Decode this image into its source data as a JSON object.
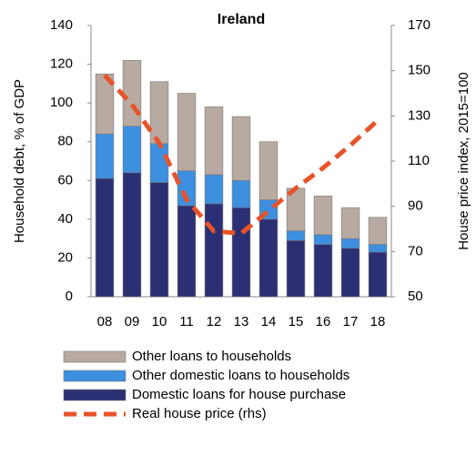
{
  "chart_data": {
    "type": "bar_line",
    "title": "Ireland",
    "y_label": "Household debt, % of GDP",
    "y2_label": "House price index, 2015=100",
    "categories": [
      "08",
      "09",
      "10",
      "11",
      "12",
      "13",
      "14",
      "15",
      "16",
      "17",
      "18"
    ],
    "ylim": [
      0,
      140
    ],
    "yticks": [
      0,
      20,
      40,
      60,
      80,
      100,
      120,
      140
    ],
    "y2lim": [
      50,
      170
    ],
    "y2ticks": [
      50,
      70,
      90,
      110,
      130,
      150,
      170
    ],
    "stacked": true,
    "series": [
      {
        "name": "Domestic loans for house purchase",
        "color": "#2b2f73",
        "values": [
          61,
          64,
          59,
          47,
          48,
          46,
          40,
          29,
          27,
          25,
          23
        ]
      },
      {
        "name": "Other domestic loans to households",
        "color": "#3d8fdf",
        "values": [
          23,
          24,
          20,
          18,
          15,
          14,
          10,
          5,
          5,
          5,
          4
        ]
      },
      {
        "name": "Other loans to households",
        "color": "#b8aaa0",
        "values": [
          31,
          34,
          32,
          40,
          35,
          33,
          30,
          22,
          20,
          16,
          14
        ]
      },
      {
        "name": "Real house price (rhs)",
        "color": "#e8532a",
        "axis": "y2",
        "type": "line",
        "values": [
          148,
          135,
          118,
          93,
          79,
          78,
          88,
          98,
          107,
          117,
          128
        ]
      }
    ]
  }
}
